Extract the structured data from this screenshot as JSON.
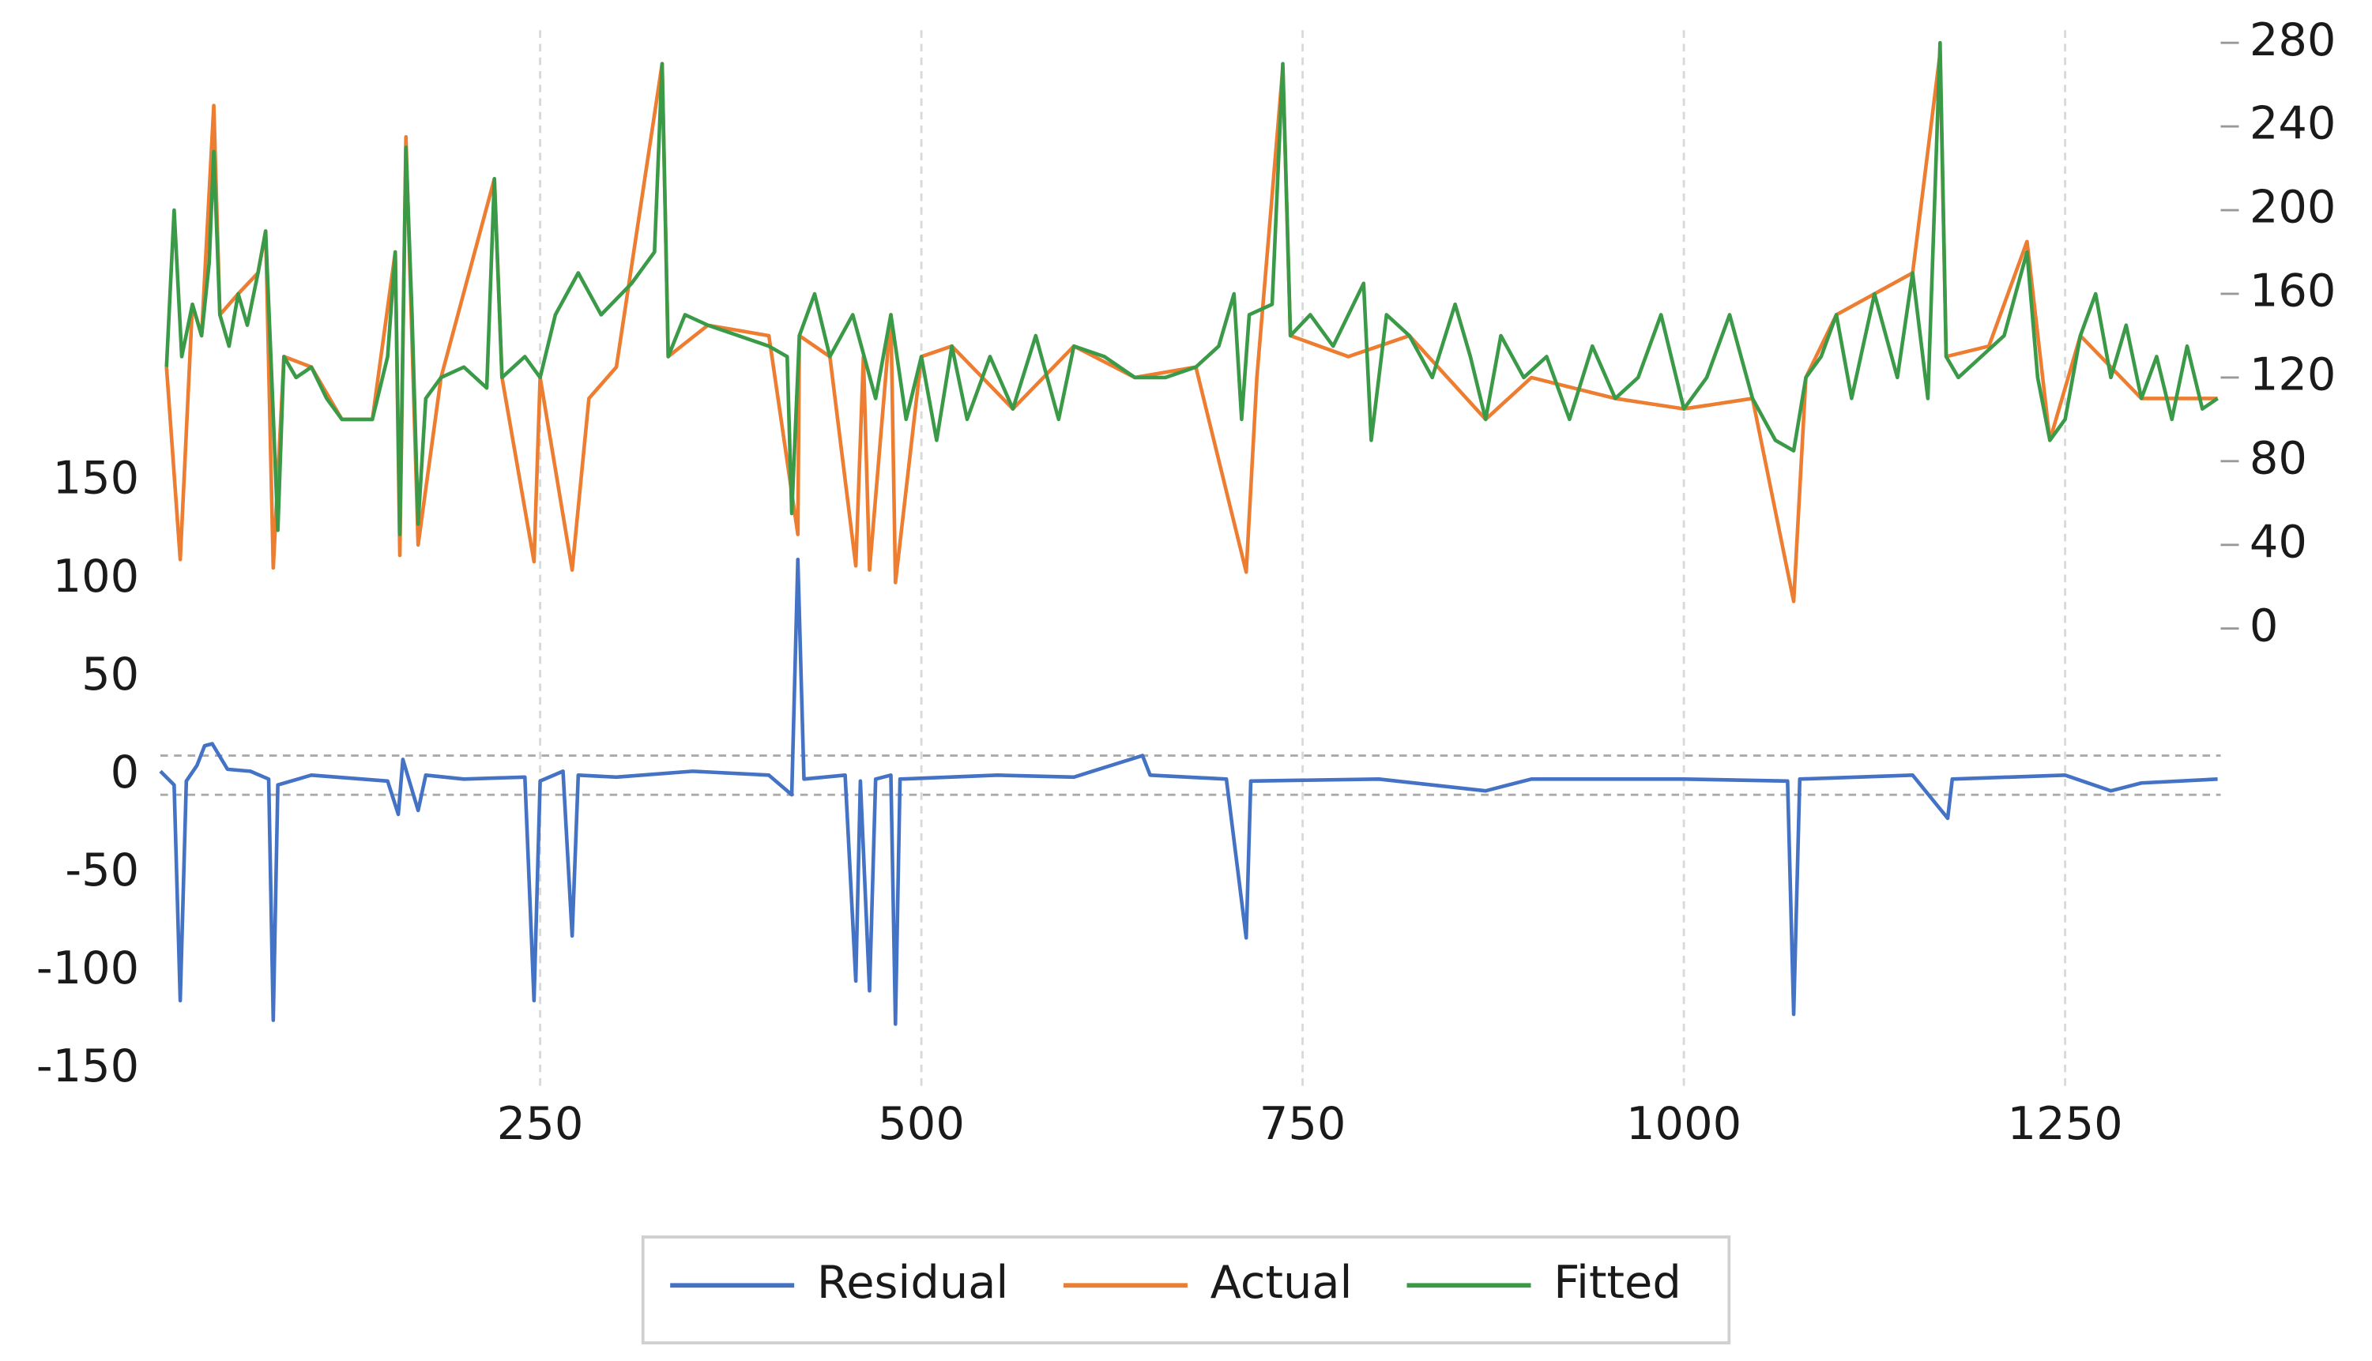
{
  "chart_data": {
    "type": "line",
    "xlim": [
      1,
      1352
    ],
    "xticks": [
      250,
      500,
      750,
      1000,
      1250
    ],
    "ylim": [
      -160,
      380
    ],
    "yticks": [
      -150,
      -100,
      -50,
      0,
      50,
      100,
      150
    ],
    "y2lim": [
      -220,
      286
    ],
    "y2ticks": [
      0,
      40,
      80,
      120,
      160,
      200,
      240,
      280
    ],
    "grid": true,
    "reference_lines": [
      -10,
      10
    ],
    "legend": "bottom",
    "series": [
      {
        "name": "Residual",
        "color": "#4472c4",
        "axis": "y",
        "x": [
          1,
          10,
          14,
          18,
          25,
          30,
          35,
          45,
          60,
          72,
          75,
          78,
          100,
          150,
          157,
          160,
          170,
          175,
          200,
          240,
          246,
          250,
          265,
          271,
          275,
          300,
          350,
          400,
          415,
          419,
          423,
          450,
          457,
          460,
          466,
          470,
          480,
          483,
          486,
          550,
          600,
          645,
          650,
          700,
          713,
          716,
          800,
          870,
          900,
          1000,
          1068,
          1072,
          1076,
          1150,
          1173,
          1176,
          1250,
          1280,
          1300,
          1350
        ],
        "values": [
          2,
          -5,
          -115,
          -3,
          5,
          15,
          16,
          3,
          2,
          -2,
          -125,
          -5,
          0,
          -3,
          -20,
          8,
          -18,
          0,
          -2,
          -1,
          -115,
          -3,
          2,
          -82,
          0,
          -1,
          2,
          0,
          -10,
          110,
          -2,
          0,
          -105,
          -3,
          -110,
          -2,
          0,
          -127,
          -2,
          0,
          -1,
          10,
          0,
          -2,
          -83,
          -3,
          -2,
          -8,
          -2,
          -2,
          -3,
          -122,
          -2,
          0,
          -22,
          -2,
          0,
          -8,
          -4,
          -2
        ]
      },
      {
        "name": "Actual",
        "color": "#ed7d31",
        "axis": "y2",
        "x": [
          5,
          14,
          22,
          28,
          36,
          40,
          52,
          65,
          70,
          75,
          82,
          100,
          120,
          140,
          155,
          158,
          162,
          170,
          185,
          220,
          225,
          246,
          250,
          271,
          282,
          300,
          330,
          334,
          360,
          400,
          419,
          420,
          440,
          457,
          462,
          466,
          480,
          483,
          500,
          520,
          560,
          600,
          640,
          680,
          713,
          720,
          737,
          742,
          780,
          820,
          870,
          900,
          955,
          1000,
          1045,
          1072,
          1080,
          1100,
          1150,
          1168,
          1172,
          1200,
          1225,
          1240,
          1260,
          1300,
          1350
        ],
        "values": [
          125,
          33,
          155,
          140,
          250,
          150,
          160,
          170,
          190,
          29,
          130,
          125,
          100,
          100,
          180,
          35,
          235,
          40,
          120,
          215,
          120,
          32,
          120,
          28,
          110,
          125,
          270,
          130,
          145,
          140,
          45,
          140,
          130,
          30,
          130,
          28,
          150,
          22,
          130,
          135,
          105,
          135,
          120,
          125,
          27,
          120,
          268,
          140,
          130,
          140,
          100,
          120,
          110,
          105,
          110,
          13,
          120,
          150,
          170,
          275,
          130,
          135,
          185,
          90,
          140,
          110,
          110
        ]
      },
      {
        "name": "Fitted",
        "color": "#3a9a48",
        "axis": "y2",
        "x": [
          5,
          10,
          15,
          22,
          28,
          33,
          36,
          40,
          46,
          52,
          58,
          65,
          70,
          74,
          78,
          82,
          90,
          100,
          110,
          120,
          140,
          150,
          155,
          158,
          162,
          166,
          170,
          175,
          185,
          200,
          215,
          220,
          225,
          240,
          250,
          260,
          275,
          290,
          310,
          325,
          330,
          334,
          345,
          360,
          380,
          400,
          412,
          415,
          420,
          430,
          440,
          455,
          470,
          480,
          490,
          500,
          510,
          520,
          530,
          545,
          560,
          575,
          590,
          600,
          620,
          640,
          660,
          680,
          695,
          705,
          710,
          715,
          730,
          737,
          742,
          755,
          770,
          790,
          795,
          805,
          820,
          835,
          850,
          860,
          870,
          880,
          895,
          910,
          925,
          940,
          955,
          970,
          985,
          1000,
          1015,
          1030,
          1045,
          1060,
          1072,
          1080,
          1090,
          1100,
          1110,
          1125,
          1140,
          1150,
          1160,
          1168,
          1172,
          1180,
          1195,
          1210,
          1225,
          1232,
          1240,
          1250,
          1260,
          1270,
          1280,
          1290,
          1300,
          1310,
          1320,
          1330,
          1340,
          1350
        ],
        "values": [
          125,
          200,
          130,
          155,
          140,
          175,
          228,
          150,
          135,
          160,
          145,
          170,
          190,
          120,
          47,
          130,
          120,
          125,
          110,
          100,
          100,
          130,
          180,
          45,
          230,
          150,
          50,
          110,
          120,
          125,
          115,
          215,
          120,
          130,
          120,
          150,
          170,
          150,
          165,
          180,
          270,
          130,
          150,
          145,
          140,
          135,
          130,
          55,
          140,
          160,
          130,
          150,
          110,
          150,
          100,
          130,
          90,
          135,
          100,
          130,
          105,
          140,
          100,
          135,
          130,
          120,
          120,
          125,
          135,
          160,
          100,
          150,
          155,
          270,
          140,
          150,
          135,
          165,
          90,
          150,
          140,
          120,
          155,
          130,
          100,
          140,
          120,
          130,
          100,
          135,
          110,
          120,
          150,
          105,
          120,
          150,
          110,
          90,
          85,
          120,
          130,
          150,
          110,
          160,
          120,
          170,
          110,
          280,
          130,
          120,
          130,
          140,
          180,
          120,
          90,
          100,
          140,
          160,
          120,
          145,
          110,
          130,
          100,
          135,
          105,
          110
        ]
      }
    ]
  }
}
